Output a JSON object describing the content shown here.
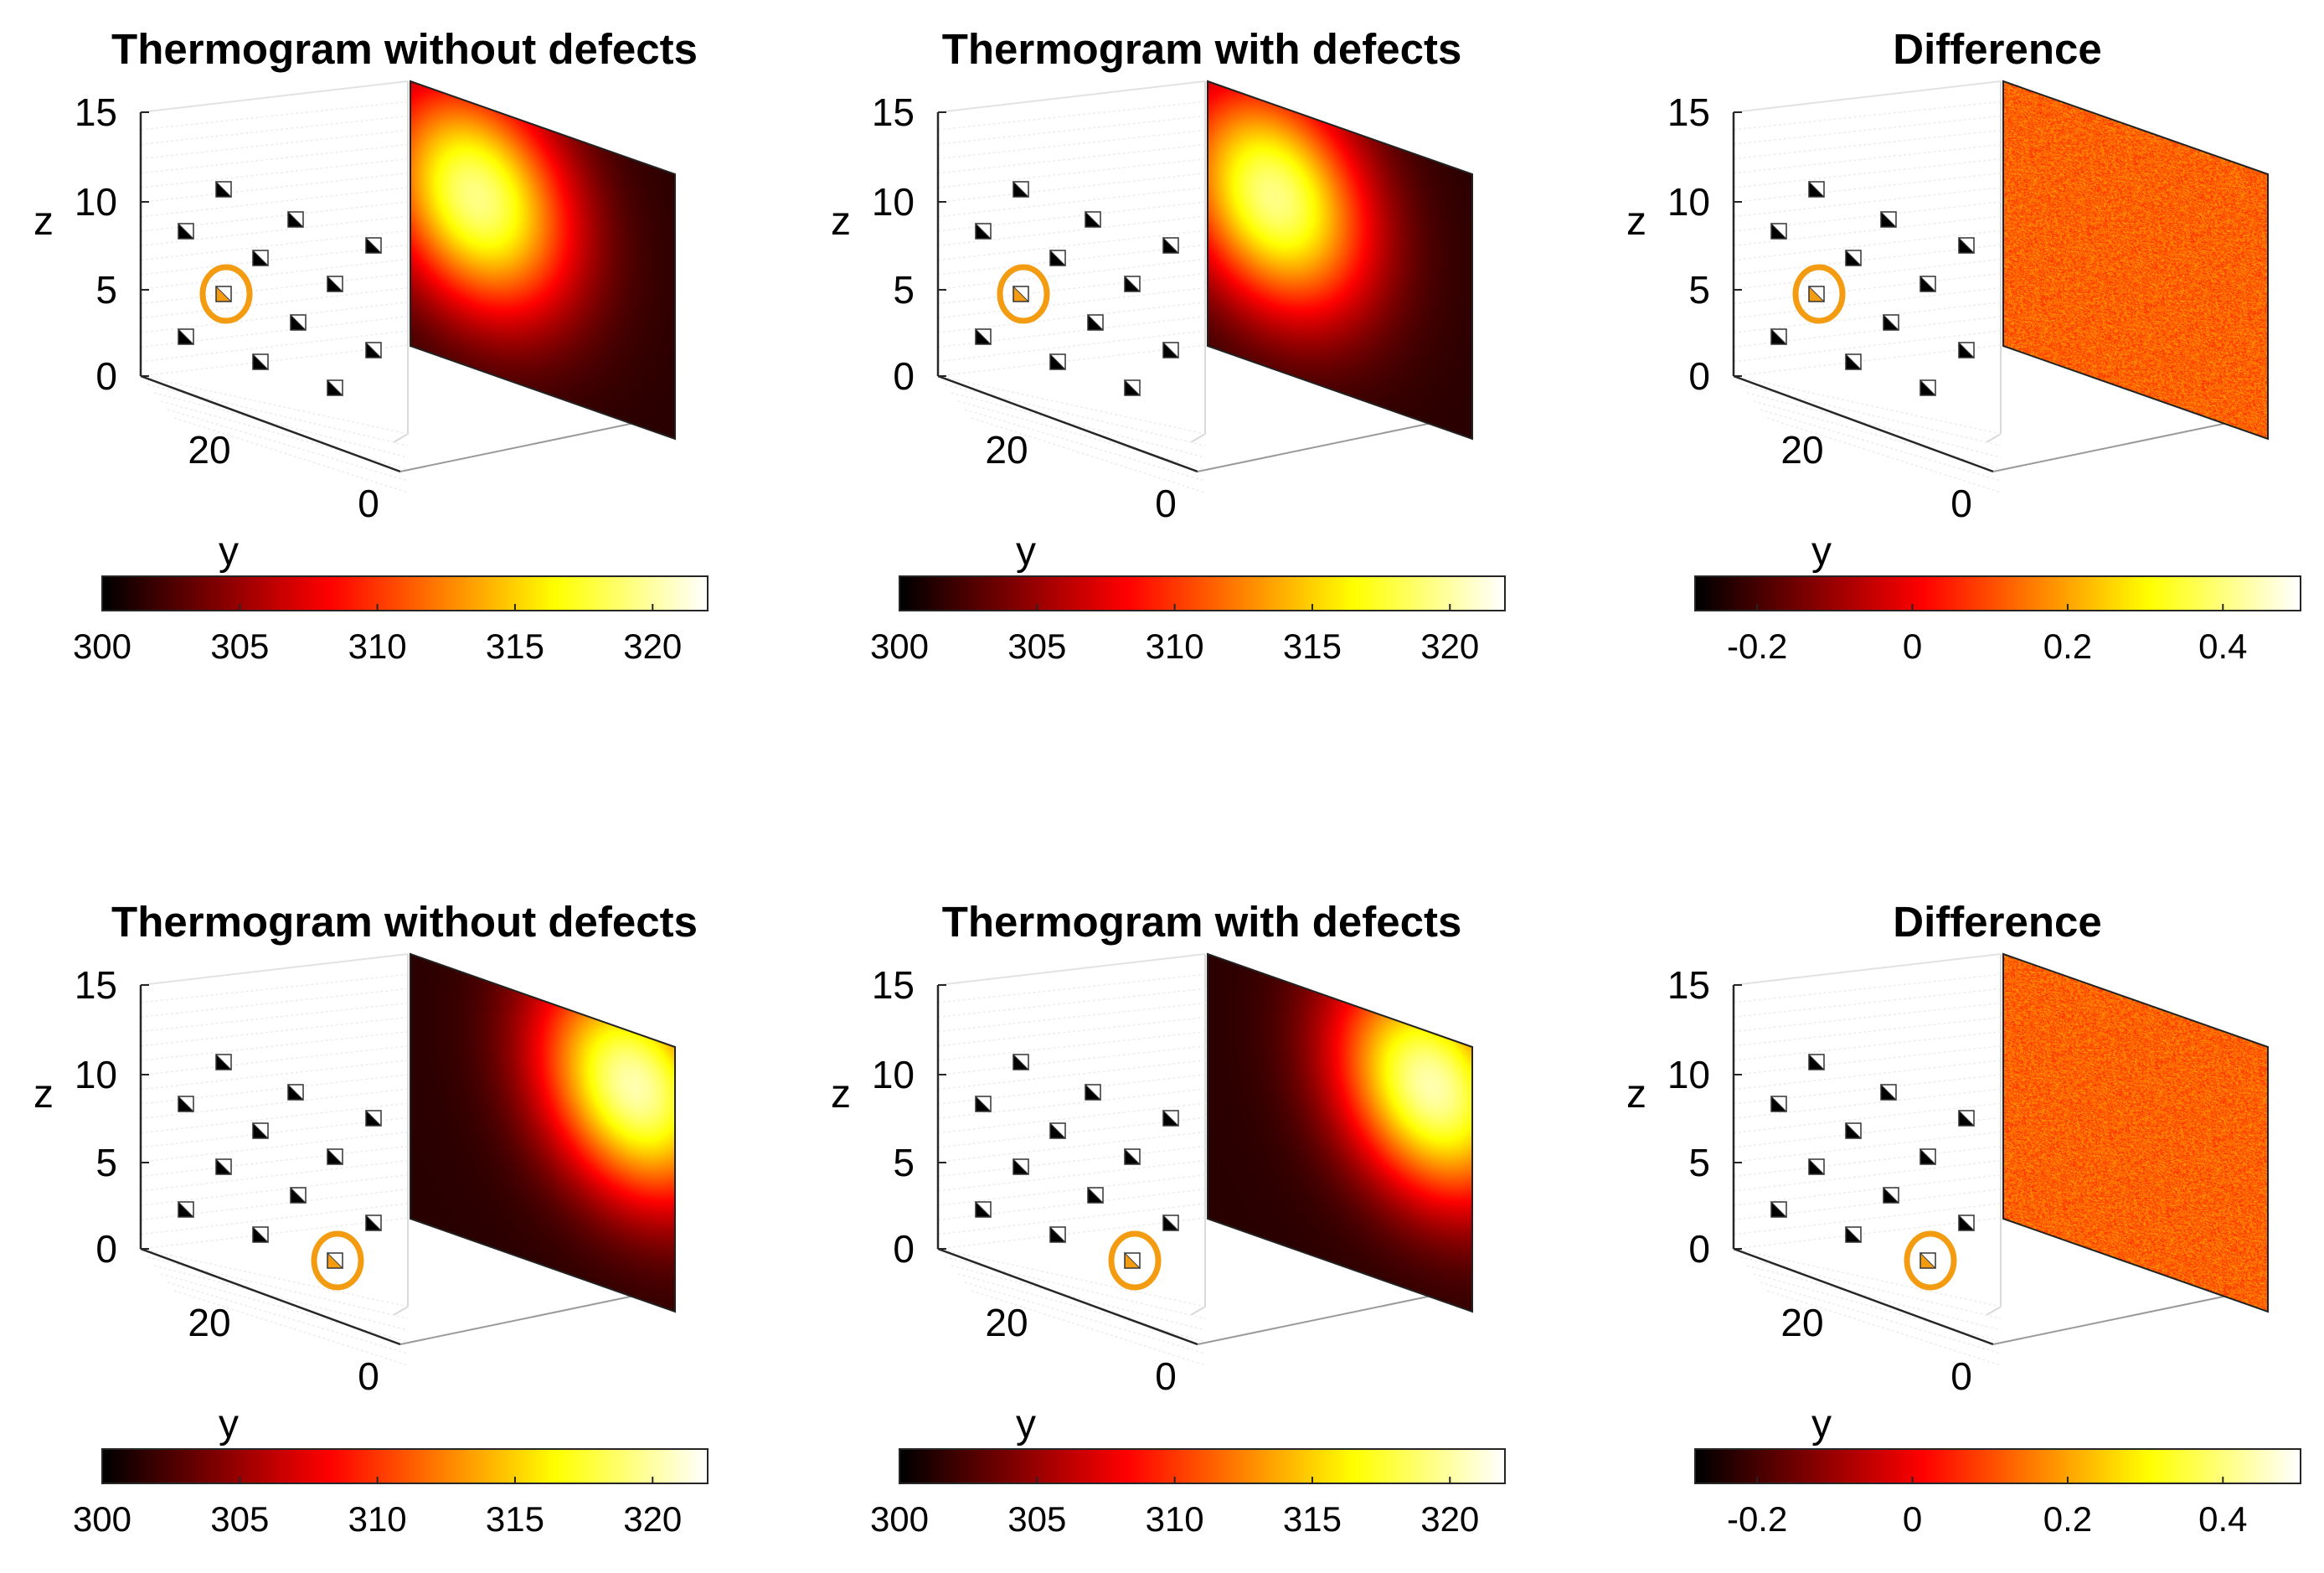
{
  "figure": {
    "colormap": "hot",
    "marker_colors": {
      "primary": "#000000",
      "secondary": "#ffffff",
      "highlight": "#f39c12"
    },
    "highlight_ring_color": "#f39c12"
  },
  "chart_data": [
    {
      "type": "heatmap-3d",
      "title": "Thermogram without defects",
      "zlabel": "z",
      "ylabel": "y",
      "z_ticks": [
        "0",
        "5",
        "10",
        "15"
      ],
      "y_ticks": [
        "20",
        "0"
      ],
      "colorbar": {
        "range": [
          300,
          322
        ],
        "tick_values": [
          300,
          305,
          310,
          315,
          320
        ],
        "tick_labels": [
          "300",
          "305",
          "310",
          "315",
          "320"
        ]
      },
      "heat_spot": {
        "y_fraction": 0.25,
        "z_fraction": 0.35,
        "peak_level": 0.88
      },
      "highlighted_marker": 5
    },
    {
      "type": "heatmap-3d",
      "title": "Thermogram with defects",
      "zlabel": "z",
      "ylabel": "y",
      "z_ticks": [
        "0",
        "5",
        "10",
        "15"
      ],
      "y_ticks": [
        "20",
        "0"
      ],
      "colorbar": {
        "range": [
          300,
          322
        ],
        "tick_values": [
          300,
          305,
          310,
          315,
          320
        ],
        "tick_labels": [
          "300",
          "305",
          "310",
          "315",
          "320"
        ]
      },
      "heat_spot": {
        "y_fraction": 0.25,
        "z_fraction": 0.35,
        "peak_level": 0.88
      },
      "highlighted_marker": 5
    },
    {
      "type": "heatmap-3d",
      "title": "Difference",
      "zlabel": "z",
      "ylabel": "y",
      "z_ticks": [
        "0",
        "5",
        "10",
        "15"
      ],
      "y_ticks": [
        "20",
        "0"
      ],
      "colorbar": {
        "range": [
          -0.28,
          0.5
        ],
        "tick_values": [
          -0.2,
          0,
          0.2,
          0.4
        ],
        "tick_labels": [
          "-0.2",
          "0",
          "0.2",
          "0.4"
        ]
      },
      "noise_field": {
        "mean_level": 0.52,
        "spread": 0.1
      },
      "highlighted_marker": 5
    },
    {
      "type": "heatmap-3d",
      "title": "Thermogram without defects",
      "zlabel": "z",
      "ylabel": "y",
      "z_ticks": [
        "0",
        "5",
        "10",
        "15"
      ],
      "y_ticks": [
        "20",
        "0"
      ],
      "colorbar": {
        "range": [
          300,
          322
        ],
        "tick_values": [
          300,
          305,
          310,
          315,
          320
        ],
        "tick_labels": [
          "300",
          "305",
          "310",
          "315",
          "320"
        ]
      },
      "heat_spot": {
        "y_fraction": 0.85,
        "z_fraction": 0.2,
        "peak_level": 0.92
      },
      "highlighted_marker": 11
    },
    {
      "type": "heatmap-3d",
      "title": "Thermogram with defects",
      "zlabel": "z",
      "ylabel": "y",
      "z_ticks": [
        "0",
        "5",
        "10",
        "15"
      ],
      "y_ticks": [
        "20",
        "0"
      ],
      "colorbar": {
        "range": [
          300,
          322
        ],
        "tick_values": [
          300,
          305,
          310,
          315,
          320
        ],
        "tick_labels": [
          "300",
          "305",
          "310",
          "315",
          "320"
        ]
      },
      "heat_spot": {
        "y_fraction": 0.85,
        "z_fraction": 0.2,
        "peak_level": 0.92
      },
      "highlighted_marker": 11
    },
    {
      "type": "heatmap-3d",
      "title": "Difference",
      "zlabel": "z",
      "ylabel": "y",
      "z_ticks": [
        "0",
        "5",
        "10",
        "15"
      ],
      "y_ticks": [
        "20",
        "0"
      ],
      "colorbar": {
        "range": [
          -0.28,
          0.5
        ],
        "tick_values": [
          -0.2,
          0,
          0.2,
          0.4
        ],
        "tick_labels": [
          "-0.2",
          "0",
          "0.2",
          "0.4"
        ]
      },
      "noise_field": {
        "mean_level": 0.52,
        "spread": 0.1
      },
      "highlighted_marker": 11
    }
  ]
}
